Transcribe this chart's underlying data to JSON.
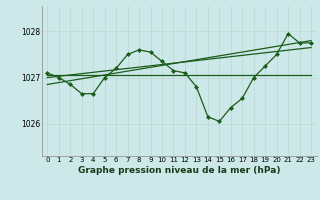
{
  "title": "Graphe pression niveau de la mer (hPa)",
  "bg_color": "#cce8e8",
  "grid_color": "#b8d8d8",
  "line_color": "#1a5c1a",
  "marker_color": "#1a5c1a",
  "xlim": [
    -0.5,
    23.5
  ],
  "ylim": [
    1025.3,
    1028.55
  ],
  "yticks": [
    1026,
    1027,
    1028
  ],
  "xticks": [
    0,
    1,
    2,
    3,
    4,
    5,
    6,
    7,
    8,
    9,
    10,
    11,
    12,
    13,
    14,
    15,
    16,
    17,
    18,
    19,
    20,
    21,
    22,
    23
  ],
  "series1_x": [
    0,
    1,
    2,
    3,
    4,
    5,
    6,
    7,
    8,
    9,
    10,
    11,
    12,
    13,
    14,
    15,
    16,
    17,
    18,
    19,
    20,
    21,
    22,
    23
  ],
  "series1_y": [
    1027.1,
    1027.0,
    1026.85,
    1026.65,
    1026.65,
    1027.0,
    1027.2,
    1027.5,
    1027.6,
    1027.55,
    1027.35,
    1027.15,
    1027.1,
    1026.8,
    1026.15,
    1026.05,
    1026.35,
    1026.55,
    1027.0,
    1027.25,
    1027.5,
    1027.95,
    1027.75,
    1027.75
  ],
  "series2_x": [
    0,
    23
  ],
  "series2_y": [
    1027.05,
    1027.05
  ],
  "series3_x": [
    0,
    23
  ],
  "series3_y": [
    1027.0,
    1027.65
  ],
  "series4_x": [
    0,
    23
  ],
  "series4_y": [
    1026.85,
    1027.8
  ]
}
